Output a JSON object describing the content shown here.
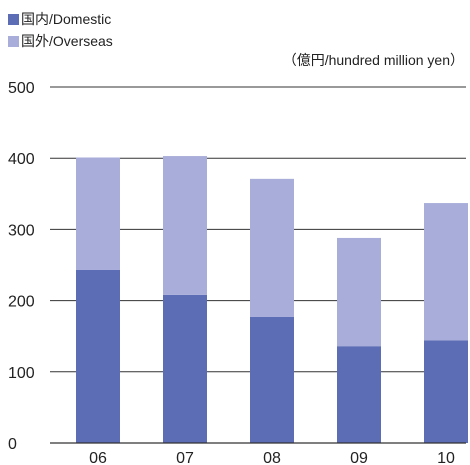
{
  "legend": [
    {
      "label": "国内/Domestic",
      "color": "#5d6db5"
    },
    {
      "label": "国外/Overseas",
      "color": "#a8add9"
    }
  ],
  "unit_label": "（億円/hundred million yen）",
  "chart_data": {
    "type": "bar",
    "stacked": true,
    "categories": [
      "06",
      "07",
      "08",
      "09",
      "10"
    ],
    "series": [
      {
        "name": "国内/Domestic",
        "color": "#5d6db5",
        "values": [
          243,
          208,
          177,
          136,
          144
        ]
      },
      {
        "name": "国外/Overseas",
        "color": "#a8add9",
        "values": [
          158,
          195,
          194,
          152,
          193
        ]
      }
    ],
    "ylim": [
      0,
      500
    ],
    "yticks": [
      0,
      100,
      200,
      300,
      400,
      500
    ],
    "grid": true,
    "legend_position": "top-left"
  }
}
